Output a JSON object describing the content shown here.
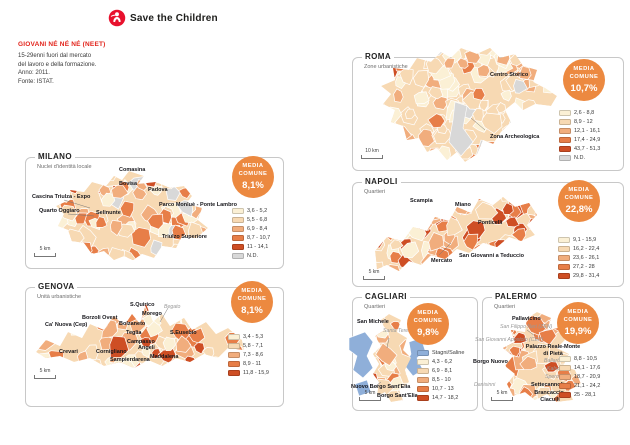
{
  "header": {
    "brand": "Save the Children"
  },
  "intro": {
    "title": "GIOVANI NÉ NÉ NÉ (NEET)",
    "line1": "15-29enni fuori dal mercato",
    "line2": "del lavoro e della formazione.",
    "line3": "Anno: 2011.",
    "line4": "Fonte: ISTAT."
  },
  "colors": {
    "accent_orange": "#EC8940",
    "brand_red": "#E8112D",
    "title_red": "#E2231A",
    "nd_gray": "#D8D8D8",
    "water_blue": "#8FAFD9"
  },
  "panels": {
    "milano": {
      "title": "MILANO",
      "subtitle": "Nuclei d'identità locale",
      "media_line1": "MEDIA",
      "media_line2": "COMUNE",
      "media_value": "8,1%",
      "scale": "5 km",
      "legend": [
        {
          "color": "#FBF0D5",
          "range": "3,6 - 5,2"
        },
        {
          "color": "#F7D9B3",
          "range": "5,5 - 6,8"
        },
        {
          "color": "#F1AD7D",
          "range": "6,9 - 8,4"
        },
        {
          "color": "#E77E48",
          "range": "8,7 - 10,7"
        },
        {
          "color": "#CE4E24",
          "range": "11 - 14,1"
        },
        {
          "color": "#D8D8D8",
          "range": "N.D."
        }
      ],
      "labels": [
        {
          "text": "Comasina"
        },
        {
          "text": "Bovisa"
        },
        {
          "text": "Padova"
        },
        {
          "text": "Cascina Triulza - Expo"
        },
        {
          "text": "Quarto Oggiaro"
        },
        {
          "text": "Parco Monluè - Ponte Lambro"
        },
        {
          "text": "Selinunte"
        },
        {
          "text": "Triulzo Superiore"
        }
      ]
    },
    "genova": {
      "title": "GENOVA",
      "subtitle": "Unità urbanistiche",
      "media_line1": "MEDIA",
      "media_line2": "COMUNE",
      "media_value": "8,1%",
      "scale": "5 km",
      "legend": [
        {
          "color": "#FBF0D5",
          "range": "3,4 - 5,3"
        },
        {
          "color": "#F7D9B3",
          "range": "5,8 - 7,1"
        },
        {
          "color": "#F1AD7D",
          "range": "7,3 - 8,6"
        },
        {
          "color": "#E77E48",
          "range": "8,9 - 11"
        },
        {
          "color": "#CE4E24",
          "range": "11,8 - 15,9"
        }
      ],
      "labels": [
        {
          "text": "S.Quirico"
        },
        {
          "text": "Morego"
        },
        {
          "text": "Begato"
        },
        {
          "text": "Borzoli Ovest"
        },
        {
          "text": "Ca' Nuova (Cep)"
        },
        {
          "text": "Bolzaneto"
        },
        {
          "text": "Teglia"
        },
        {
          "text": "S.Eusebio"
        },
        {
          "text": "Campasso"
        },
        {
          "text": "Angeli"
        },
        {
          "text": "Crevari"
        },
        {
          "text": "Cornigliano"
        },
        {
          "text": "Sampierdarena"
        },
        {
          "text": "Maddalena"
        }
      ]
    },
    "roma": {
      "title": "ROMA",
      "subtitle": "Zone urbanistiche",
      "media_line1": "MEDIA",
      "media_line2": "COMUNE",
      "media_value": "10,7%",
      "scale": "10 km",
      "legend": [
        {
          "color": "#FBF0D5",
          "range": "2,6 - 8,8"
        },
        {
          "color": "#F7D9B3",
          "range": "8,9 - 12"
        },
        {
          "color": "#F1AD7D",
          "range": "12,1 - 16,1"
        },
        {
          "color": "#E77E48",
          "range": "17,4 - 24,9"
        },
        {
          "color": "#CE4E24",
          "range": "43,7 - 51,3"
        },
        {
          "color": "#D8D8D8",
          "range": "N.D."
        }
      ],
      "labels": [
        {
          "text": "Centro Storico"
        },
        {
          "text": "Zona Archeologica"
        }
      ]
    },
    "napoli": {
      "title": "NAPOLI",
      "subtitle": "Quartieri",
      "media_line1": "MEDIA",
      "media_line2": "COMUNE",
      "media_value": "22,8%",
      "scale": "5 km",
      "legend": [
        {
          "color": "#FBF0D5",
          "range": "9,1 - 15,9"
        },
        {
          "color": "#F7D9B3",
          "range": "16,2 - 22,4"
        },
        {
          "color": "#F1AD7D",
          "range": "23,6 - 26,1"
        },
        {
          "color": "#E77E48",
          "range": "27,2 - 28"
        },
        {
          "color": "#CE4E24",
          "range": "29,8 - 31,4"
        }
      ],
      "labels": [
        {
          "text": "Scampia"
        },
        {
          "text": "Miano"
        },
        {
          "text": "Ponticelli"
        },
        {
          "text": "San Giovanni a Teduccio"
        },
        {
          "text": "Mercato"
        }
      ]
    },
    "cagliari": {
      "title": "CAGLIARI",
      "subtitle": "Quartieri",
      "media_line1": "MEDIA",
      "media_line2": "COMUNE",
      "media_value": "9,8%",
      "scale": "5 km",
      "legend": [
        {
          "color": "#8FAFD9",
          "range": "Stagni/Saline"
        },
        {
          "color": "#FBF0D5",
          "range": "4,3 - 6,2"
        },
        {
          "color": "#F7D9B3",
          "range": "6,9 - 8,1"
        },
        {
          "color": "#F1AD7D",
          "range": "8,5 - 10"
        },
        {
          "color": "#E77E48",
          "range": "10,7 - 13"
        },
        {
          "color": "#CE4E24",
          "range": "14,7 - 18,2"
        }
      ],
      "labels": [
        {
          "text": "San Michele"
        },
        {
          "text": "Santa Teresa"
        },
        {
          "text": "Nuovo Borgo Sant'Elia"
        },
        {
          "text": "Borgo Sant'Elia"
        }
      ]
    },
    "palermo": {
      "title": "PALERMO",
      "subtitle": "Quartieri",
      "media_line1": "MEDIA",
      "media_line2": "COMUNE",
      "media_value": "19,9%",
      "scale": "5 km",
      "legend": [
        {
          "color": "#FBF0D5",
          "range": "8,8 - 10,5"
        },
        {
          "color": "#F7D9B3",
          "range": "14,1 - 17,6"
        },
        {
          "color": "#F1AD7D",
          "range": "18,7 - 20,9"
        },
        {
          "color": "#E77E48",
          "range": "21,1 - 24,2"
        },
        {
          "color": "#CE4E24",
          "range": "25 - 28,1"
        }
      ],
      "labels": [
        {
          "text": "Pallavicino"
        },
        {
          "text": "San Filippo Neri (ZEN)"
        },
        {
          "text": "San Giovanni Apostolo (CEP)"
        },
        {
          "text": "Palazzo Reale-Monte di Pietà"
        },
        {
          "text": "Borgo Nuovo"
        },
        {
          "text": "Ballarò"
        },
        {
          "text": "Kalsa"
        },
        {
          "text": "Sperone"
        },
        {
          "text": "Danisinni"
        },
        {
          "text": "Settecannoli"
        },
        {
          "text": "Brancaccio-Ciaculli"
        }
      ]
    }
  }
}
